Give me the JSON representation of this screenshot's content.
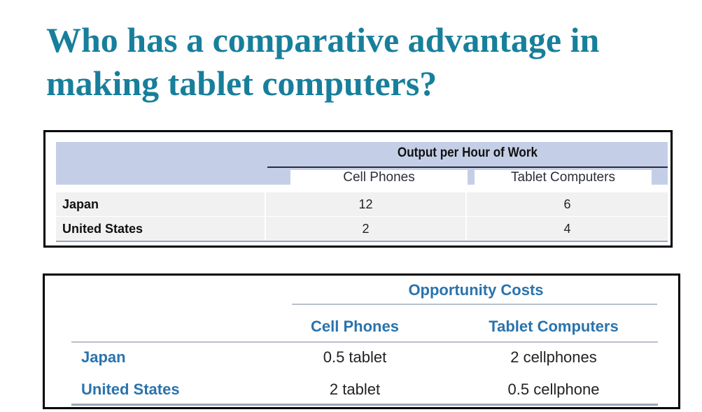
{
  "title": {
    "line1": "Who has a comparative advantage in",
    "line2": "making tablet computers?"
  },
  "output_table": {
    "group_header": "Output per Hour of Work",
    "columns": [
      "Cell Phones",
      "Tablet Computers"
    ],
    "rows": [
      {
        "label": "Japan",
        "values": [
          "12",
          "6"
        ]
      },
      {
        "label": "United States",
        "values": [
          "2",
          "4"
        ]
      }
    ]
  },
  "opportunity_table": {
    "group_header": "Opportunity Costs",
    "columns": [
      "Cell Phones",
      "Tablet Computers"
    ],
    "rows": [
      {
        "label": "Japan",
        "values": [
          "0.5 tablet",
          "2 cellphones"
        ]
      },
      {
        "label": "United States",
        "values": [
          "2 tablet",
          "0.5 cellphone"
        ]
      }
    ]
  },
  "colors": {
    "title": "#177f9b",
    "table_header_fill": "#c4cfe7",
    "opportunity_text": "#2a73ad"
  }
}
